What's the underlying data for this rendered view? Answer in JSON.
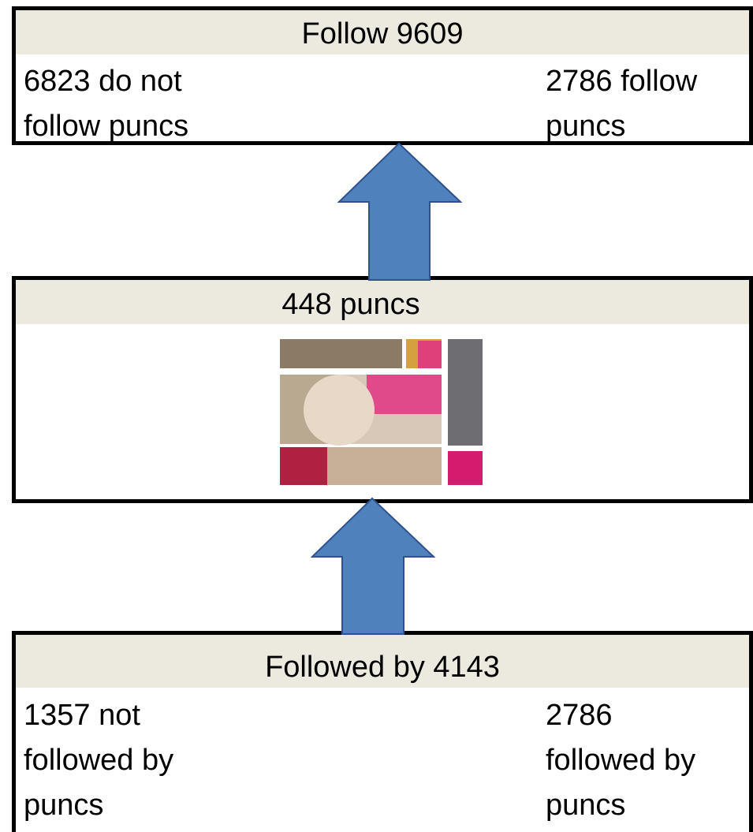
{
  "top": {
    "title": "Follow 9609",
    "left": "6823 do not follow puncs",
    "right": "2786 follow puncs"
  },
  "middle": {
    "title": "448 puncs"
  },
  "bottom": {
    "title": "Followed by 4143",
    "left": "1357 not followed by puncs",
    "right": "2786 followed by puncs"
  }
}
